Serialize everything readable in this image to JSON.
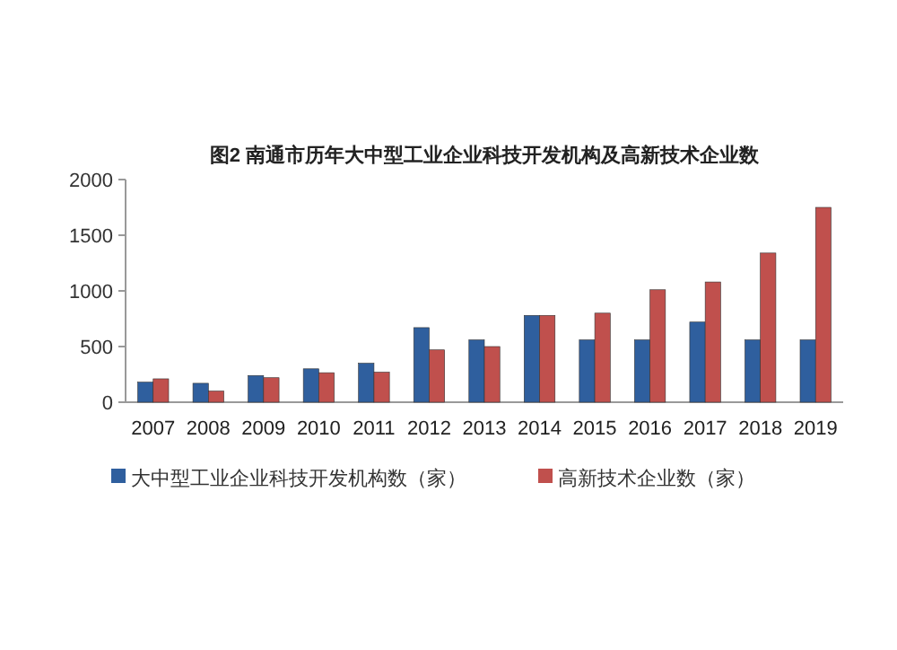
{
  "chart_data": {
    "type": "bar",
    "title": "图2 南通市历年大中型工业企业科技开发机构及高新技术企业数",
    "categories": [
      "2007",
      "2008",
      "2009",
      "2010",
      "2011",
      "2012",
      "2013",
      "2014",
      "2015",
      "2016",
      "2017",
      "2018",
      "2019"
    ],
    "series": [
      {
        "name": "大中型工业企业科技开发机构数（家）",
        "color": "#2f5f9e",
        "values": [
          180,
          170,
          240,
          300,
          350,
          670,
          560,
          780,
          560,
          560,
          720,
          560,
          560
        ]
      },
      {
        "name": "高新技术企业数（家）",
        "color": "#c0504d",
        "values": [
          210,
          100,
          220,
          265,
          270,
          470,
          500,
          780,
          800,
          1010,
          1080,
          1340,
          1750
        ]
      }
    ],
    "ylim": [
      0,
      2000
    ],
    "yticks": [
      0,
      500,
      1000,
      1500,
      2000
    ],
    "legend": "bottom"
  }
}
